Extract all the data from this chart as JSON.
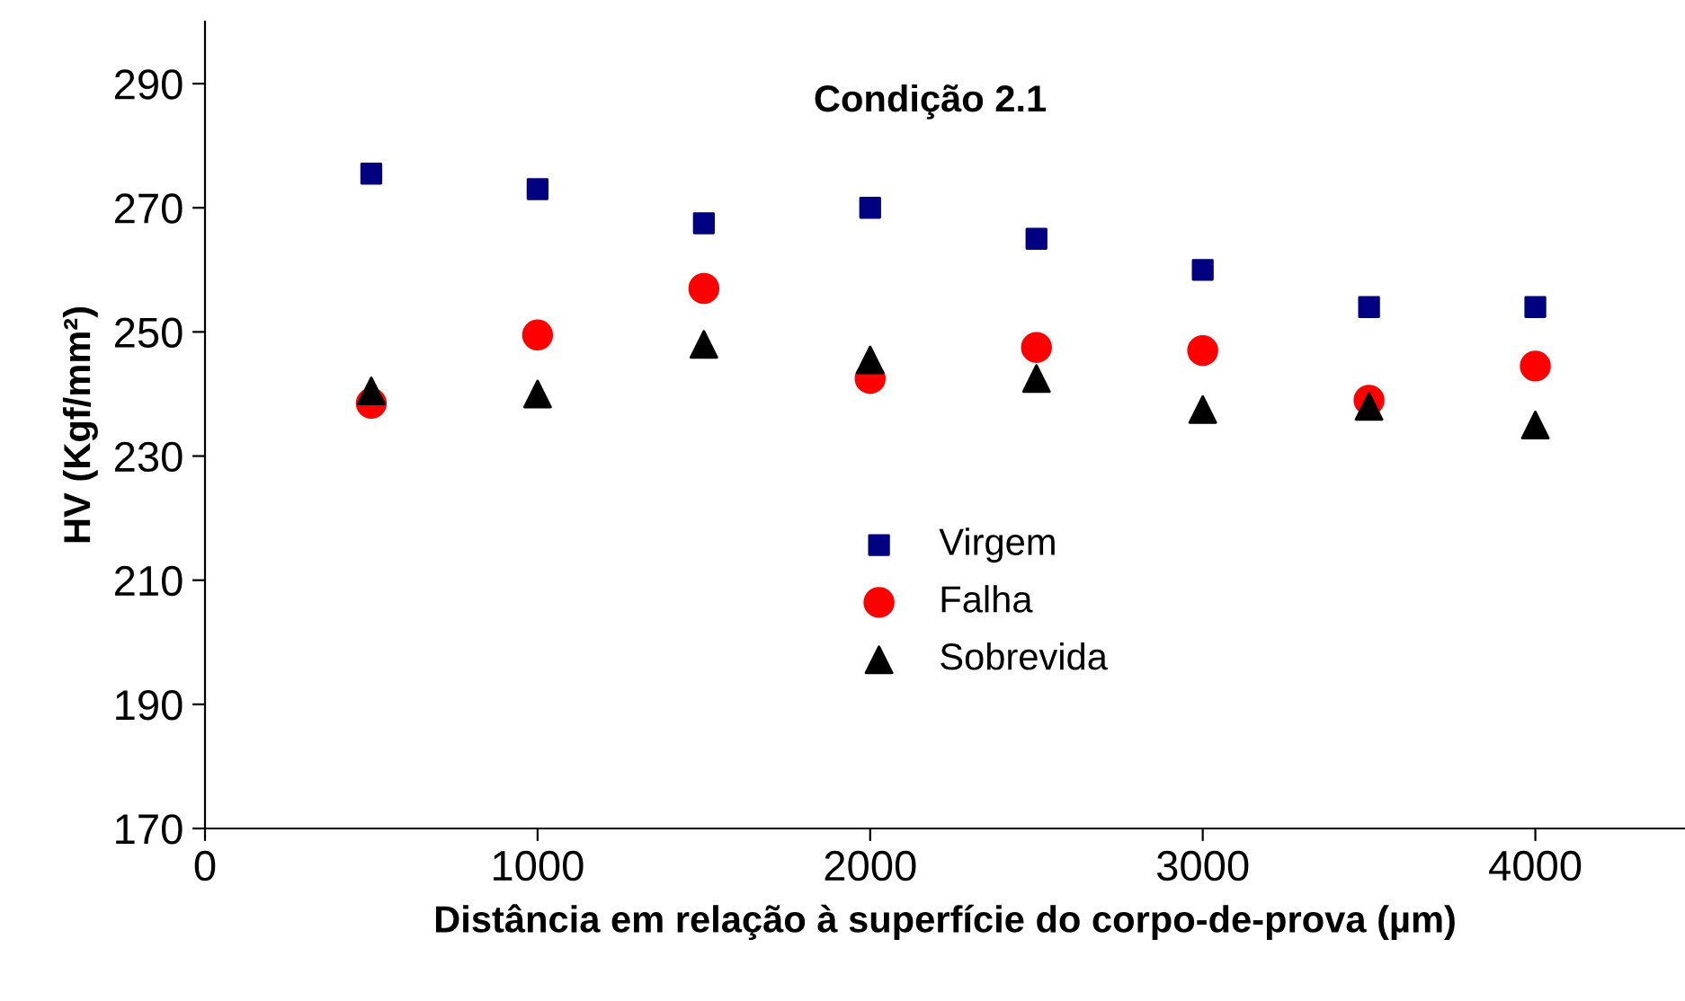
{
  "chart_data": {
    "type": "scatter",
    "title": "Condição 2.1",
    "xlabel": "Distância em relação à superfície do corpo-de-prova (µm)",
    "ylabel": "HV (Kgf/mm²)",
    "x": [
      500,
      1000,
      1500,
      2000,
      2500,
      3000,
      3500,
      4000
    ],
    "series": [
      {
        "name": "Virgem",
        "color": "#000080",
        "marker": "square",
        "values": [
          275.5,
          273,
          267.5,
          270,
          265,
          260,
          254,
          254
        ]
      },
      {
        "name": "Falha",
        "color": "#ff0000",
        "marker": "circle",
        "values": [
          238.5,
          249.5,
          257,
          242.5,
          247.5,
          247,
          239,
          244.5
        ]
      },
      {
        "name": "Sobrevida",
        "color": "#000000",
        "marker": "triangle",
        "values": [
          240.5,
          240,
          248,
          245.5,
          242.5,
          237.5,
          238,
          235
        ]
      }
    ],
    "xlim": [
      0,
      4450
    ],
    "ylim": [
      170,
      300
    ],
    "xticks": [
      0,
      1000,
      2000,
      3000,
      4000
    ],
    "yticks": [
      170,
      190,
      210,
      230,
      250,
      270,
      290
    ],
    "grid": false,
    "legend": "center"
  }
}
